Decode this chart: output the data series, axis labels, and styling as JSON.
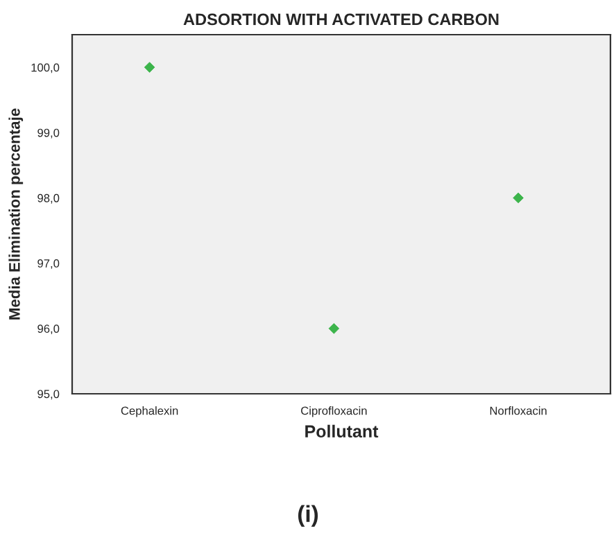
{
  "chart_data": {
    "type": "scatter",
    "title": "ADSORTION WITH ACTIVATED CARBON",
    "xlabel": "Pollutant",
    "ylabel": "Media Elimination percentaje",
    "categories": [
      "Cephalexin",
      "Ciprofloxacin",
      "Norfloxacin"
    ],
    "series": [
      {
        "color": "#3cb44b",
        "values": [
          100.0,
          96.0,
          98.0
        ]
      }
    ],
    "marker": "diamond",
    "ylim": [
      95.0,
      100.5
    ],
    "yticks": [
      {
        "value": 95,
        "label": "95,0"
      },
      {
        "value": 96,
        "label": "96,0"
      },
      {
        "value": 97,
        "label": "97,0"
      },
      {
        "value": 98,
        "label": "98,0"
      },
      {
        "value": 99,
        "label": "99,0"
      },
      {
        "value": 100,
        "label": "100,0"
      }
    ],
    "annotations": [
      "(i)"
    ]
  }
}
